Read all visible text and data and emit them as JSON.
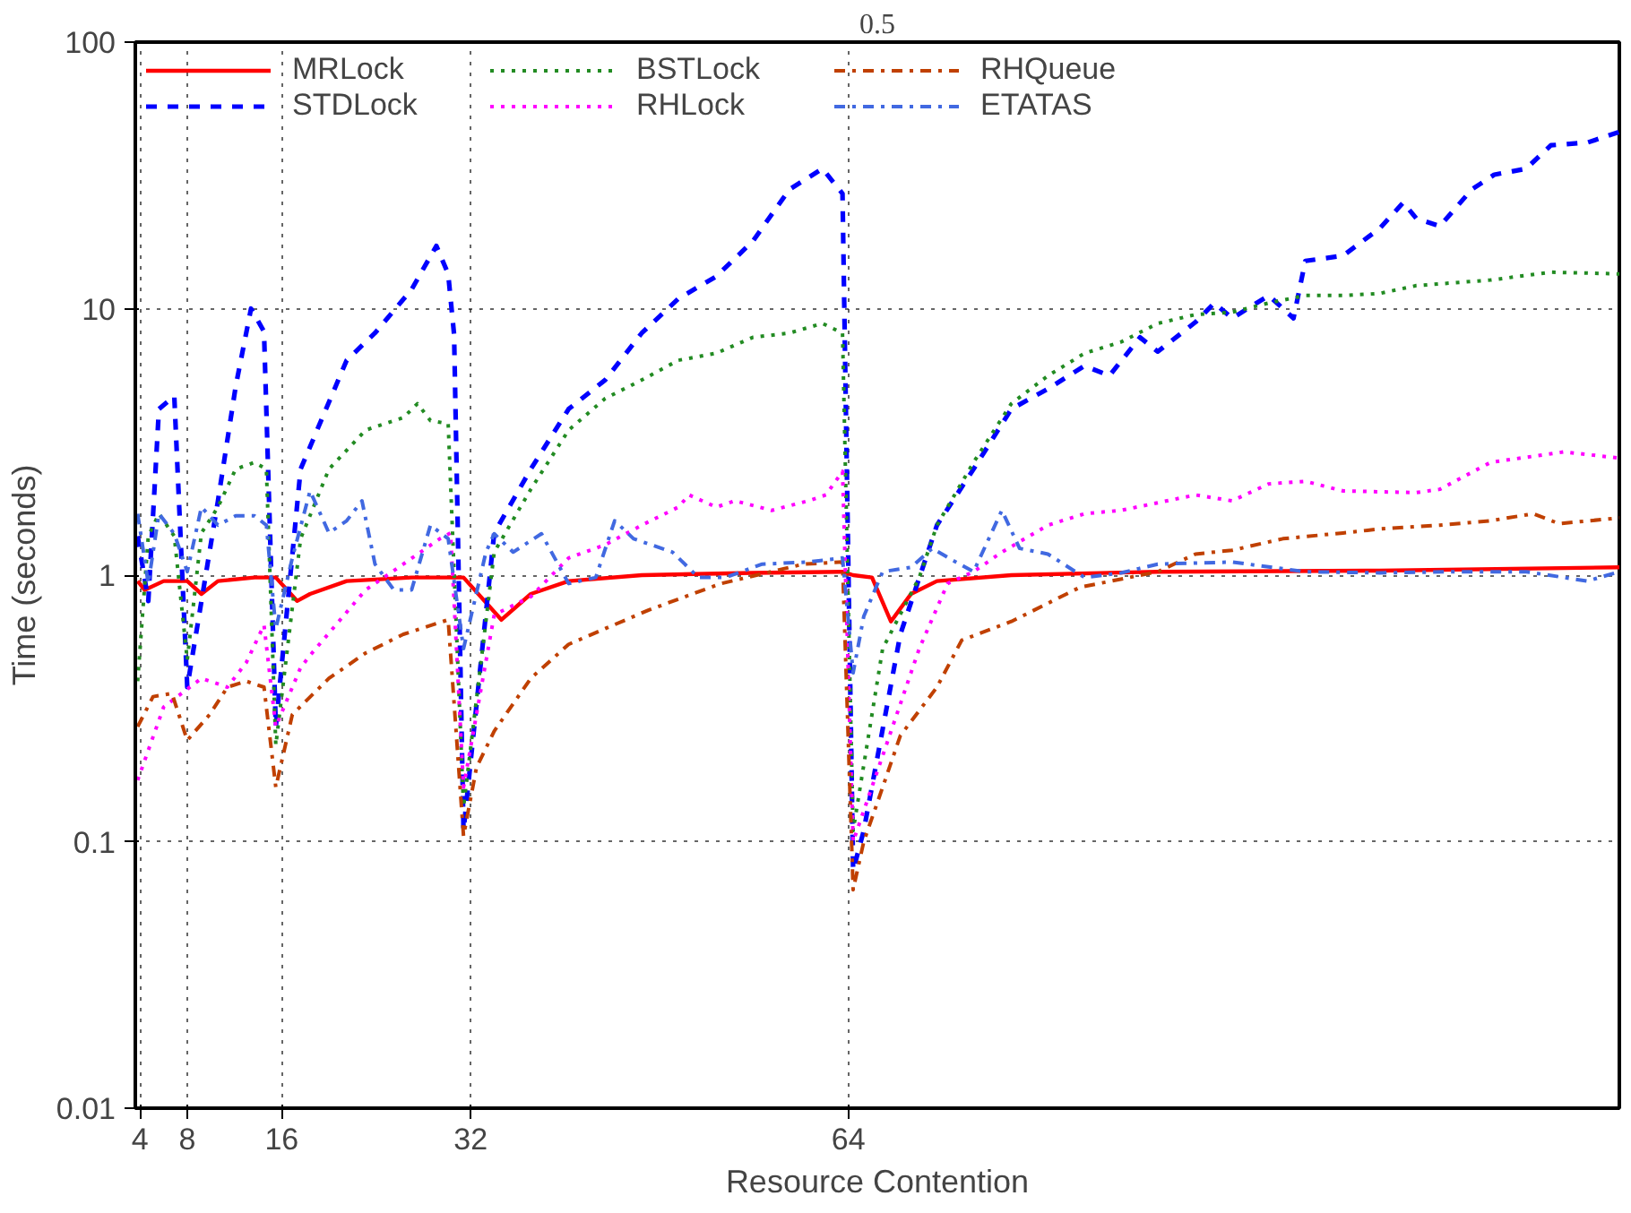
{
  "chart_data": {
    "type": "line",
    "title": "0.5",
    "xlabel": "Resource Contention",
    "ylabel": "Time (seconds)",
    "log": "y",
    "grid": true,
    "legend": "top left",
    "xlim": [
      3.6,
      129.3
    ],
    "xticks": [
      4,
      8,
      16,
      32,
      64
    ],
    "ylim": [
      0.01,
      100
    ],
    "yticks": [
      0.01,
      0.1,
      1,
      10,
      100
    ],
    "series": [
      {
        "name": "MRLock",
        "color": "#ff0000",
        "line_style": "solid",
        "x": [
          3.8,
          4.4,
          6.0,
          8.0,
          9.2,
          10.6,
          13.7,
          15.5,
          17.3,
          18.4,
          21.5,
          27.0,
          31.4,
          34.6,
          37.1,
          40.3,
          46.5,
          55.9,
          63.5,
          64.4,
          66.0,
          67.6,
          69.3,
          71.5,
          77.8,
          90.2,
          109.0,
          129.3
        ],
        "values": [
          0.95,
          0.88,
          0.95,
          0.95,
          0.85,
          0.95,
          0.98,
          0.98,
          0.8,
          0.85,
          0.95,
          0.98,
          0.98,
          0.68,
          0.85,
          0.95,
          1.0,
          1.02,
          1.03,
          1.0,
          0.98,
          0.67,
          0.85,
          0.95,
          1.0,
          1.03,
          1.04,
          1.07
        ]
      },
      {
        "name": "STDLock",
        "color": "#0000ff",
        "line_style": "dashed",
        "x": [
          3.8,
          4.7,
          5.6,
          6.9,
          8.0,
          10.6,
          12.1,
          13.4,
          14.5,
          15.5,
          17.6,
          21.5,
          23.9,
          27.0,
          29.1,
          30.1,
          30.6,
          31.4,
          34.0,
          37.1,
          40.3,
          43.4,
          46.5,
          49.6,
          52.8,
          55.9,
          59.0,
          61.8,
          63.5,
          64.4,
          65.3,
          68.4,
          71.5,
          74.6,
          77.8,
          80.9,
          84.0,
          86.1,
          88.7,
          90.2,
          93.4,
          95.0,
          96.5,
          99.6,
          101.7,
          102.7,
          105.9,
          109.0,
          111.0,
          112.1,
          114.1,
          116.8,
          118.7,
          121.4,
          123.5,
          126.6,
          129.3
        ],
        "values": [
          1.4,
          0.8,
          4.2,
          4.7,
          0.38,
          1.9,
          5.1,
          10,
          8.2,
          0.27,
          2.5,
          6.4,
          8.1,
          11.8,
          17.2,
          13.5,
          8,
          0.11,
          1.44,
          2.5,
          4.2,
          5.4,
          8.1,
          10.9,
          13.2,
          17.9,
          28,
          33.5,
          27,
          0.078,
          0.11,
          0.6,
          1.54,
          2.5,
          4.2,
          5,
          6.1,
          5.6,
          7.8,
          6.9,
          8.9,
          10.5,
          9.2,
          11.2,
          9.2,
          15.1,
          15.8,
          20,
          25,
          21.8,
          20.4,
          28,
          31.8,
          33.5,
          41,
          42,
          46
        ]
      },
      {
        "name": "BSTLock",
        "color": "#228b22",
        "line_style": "dotted",
        "x": [
          3.8,
          4.7,
          5.6,
          6.9,
          8.0,
          9.2,
          10.6,
          12.1,
          13.7,
          14.7,
          15.5,
          17.6,
          20.0,
          23.1,
          26.3,
          27.5,
          28.6,
          30.1,
          31.4,
          34.0,
          37.1,
          40.3,
          43.4,
          46.5,
          49.6,
          52.8,
          55.9,
          59.0,
          61.8,
          63.5,
          64.4,
          66.9,
          70.0,
          71.5,
          74.6,
          77.8,
          80.9,
          84.0,
          87.1,
          90.2,
          93.4,
          96.5,
          99.6,
          102.7,
          105.9,
          109.0,
          112.1,
          118.4,
          123.5,
          129.3
        ],
        "values": [
          0.4,
          1.4,
          1.7,
          1.4,
          0.48,
          1.44,
          1.8,
          2.5,
          2.65,
          2.5,
          0.23,
          1.37,
          2.5,
          3.5,
          3.9,
          4.4,
          3.8,
          3.7,
          0.135,
          1.22,
          2.1,
          3.5,
          4.6,
          5.4,
          6.4,
          6.8,
          7.8,
          8.1,
          8.8,
          8.1,
          0.11,
          0.53,
          0.98,
          1.54,
          2.65,
          4.4,
          5.6,
          6.8,
          7.5,
          8.8,
          9.5,
          9.7,
          10.5,
          11.2,
          11.2,
          11.4,
          12.2,
          12.8,
          13.7,
          13.5
        ]
      },
      {
        "name": "RHLock",
        "color": "#ff00ff",
        "line_style": "dotted",
        "x": [
          3.8,
          6.0,
          9.2,
          11.4,
          13.0,
          14.5,
          15.5,
          17.6,
          18.4,
          23.1,
          26.3,
          29.4,
          30.3,
          31.4,
          34.0,
          37.1,
          40.3,
          43.4,
          46.5,
          49.6,
          50.5,
          52.8,
          54.4,
          57.5,
          60.6,
          62.1,
          63.5,
          64.4,
          66.9,
          70.0,
          72.4,
          74.6,
          77.0,
          80.9,
          84.0,
          87.1,
          93.4,
          96.5,
          99.6,
          102.7,
          105.9,
          112.1,
          114.1,
          118.4,
          124.6,
          129.3
        ],
        "values": [
          0.17,
          0.32,
          0.41,
          0.38,
          0.47,
          0.65,
          0.27,
          0.45,
          0.5,
          0.88,
          1.1,
          1.37,
          1.44,
          0.16,
          0.71,
          0.83,
          1.16,
          1.3,
          1.54,
          1.8,
          2.0,
          1.8,
          1.9,
          1.75,
          1.9,
          2.0,
          2.45,
          0.1,
          0.21,
          0.53,
          0.93,
          1.03,
          1.22,
          1.54,
          1.7,
          1.75,
          2.0,
          1.9,
          2.2,
          2.25,
          2.07,
          2.04,
          2.1,
          2.65,
          2.9,
          2.75
        ]
      },
      {
        "name": "RHQueue",
        "color": "#c04000",
        "line_style": "dashdot",
        "x": [
          3.8,
          5.1,
          6.7,
          8.0,
          9.9,
          11.4,
          13.0,
          14.5,
          15.5,
          16.9,
          20.0,
          23.1,
          26.3,
          30.1,
          31.4,
          32.5,
          34.0,
          37.1,
          40.3,
          43.4,
          47.1,
          53.2,
          60.2,
          63.5,
          64.4,
          65.3,
          66.9,
          68.4,
          71.5,
          73.6,
          77.8,
          83.6,
          90.2,
          93.4,
          96.5,
          100.8,
          105.9,
          109.0,
          114.1,
          118.4,
          122.0,
          124.2,
          129.3
        ],
        "values": [
          0.27,
          0.35,
          0.36,
          0.24,
          0.3,
          0.38,
          0.4,
          0.38,
          0.16,
          0.3,
          0.41,
          0.51,
          0.6,
          0.68,
          0.105,
          0.19,
          0.26,
          0.41,
          0.55,
          0.63,
          0.74,
          0.93,
          1.1,
          1.12,
          0.066,
          0.1,
          0.16,
          0.25,
          0.38,
          0.57,
          0.67,
          0.9,
          1.03,
          1.2,
          1.24,
          1.37,
          1.44,
          1.49,
          1.54,
          1.6,
          1.7,
          1.56,
          1.64
        ]
      },
      {
        "name": "ETATAS",
        "color": "#4169e1",
        "line_style": "dashdot",
        "x": [
          3.8,
          4.7,
          5.6,
          6.9,
          8.0,
          9.2,
          10.6,
          12.1,
          13.7,
          14.7,
          15.5,
          16.9,
          18.4,
          20.0,
          21.5,
          22.8,
          23.9,
          25.5,
          27.0,
          28.6,
          30.1,
          31.4,
          33.3,
          34.0,
          35.6,
          38.0,
          40.3,
          42.6,
          44.2,
          45.8,
          49.1,
          51.3,
          53.6,
          56.7,
          60.6,
          63.5,
          64.4,
          65.3,
          66.9,
          69.3,
          71.1,
          73.1,
          74.6,
          77.0,
          78.5,
          80.9,
          84.0,
          87.1,
          90.2,
          96.5,
          102.7,
          109.0,
          115.2,
          121.4,
          126.6,
          129.3
        ],
        "values": [
          1.7,
          0.93,
          1.7,
          1.43,
          1.03,
          1.8,
          1.54,
          1.67,
          1.67,
          1.54,
          0.63,
          1.16,
          2.07,
          1.44,
          1.6,
          1.9,
          1.1,
          0.88,
          0.88,
          1.54,
          1.37,
          0.53,
          1.22,
          1.43,
          1.22,
          1.43,
          0.93,
          0.98,
          1.6,
          1.37,
          1.22,
          0.98,
          0.98,
          1.1,
          1.12,
          1.16,
          0.43,
          0.7,
          1.03,
          1.07,
          1.26,
          1.12,
          1.03,
          1.75,
          1.26,
          1.2,
          0.98,
          1.02,
          1.1,
          1.12,
          1.03,
          1.02,
          1.03,
          1.03,
          0.95,
          1.03
        ]
      }
    ]
  }
}
